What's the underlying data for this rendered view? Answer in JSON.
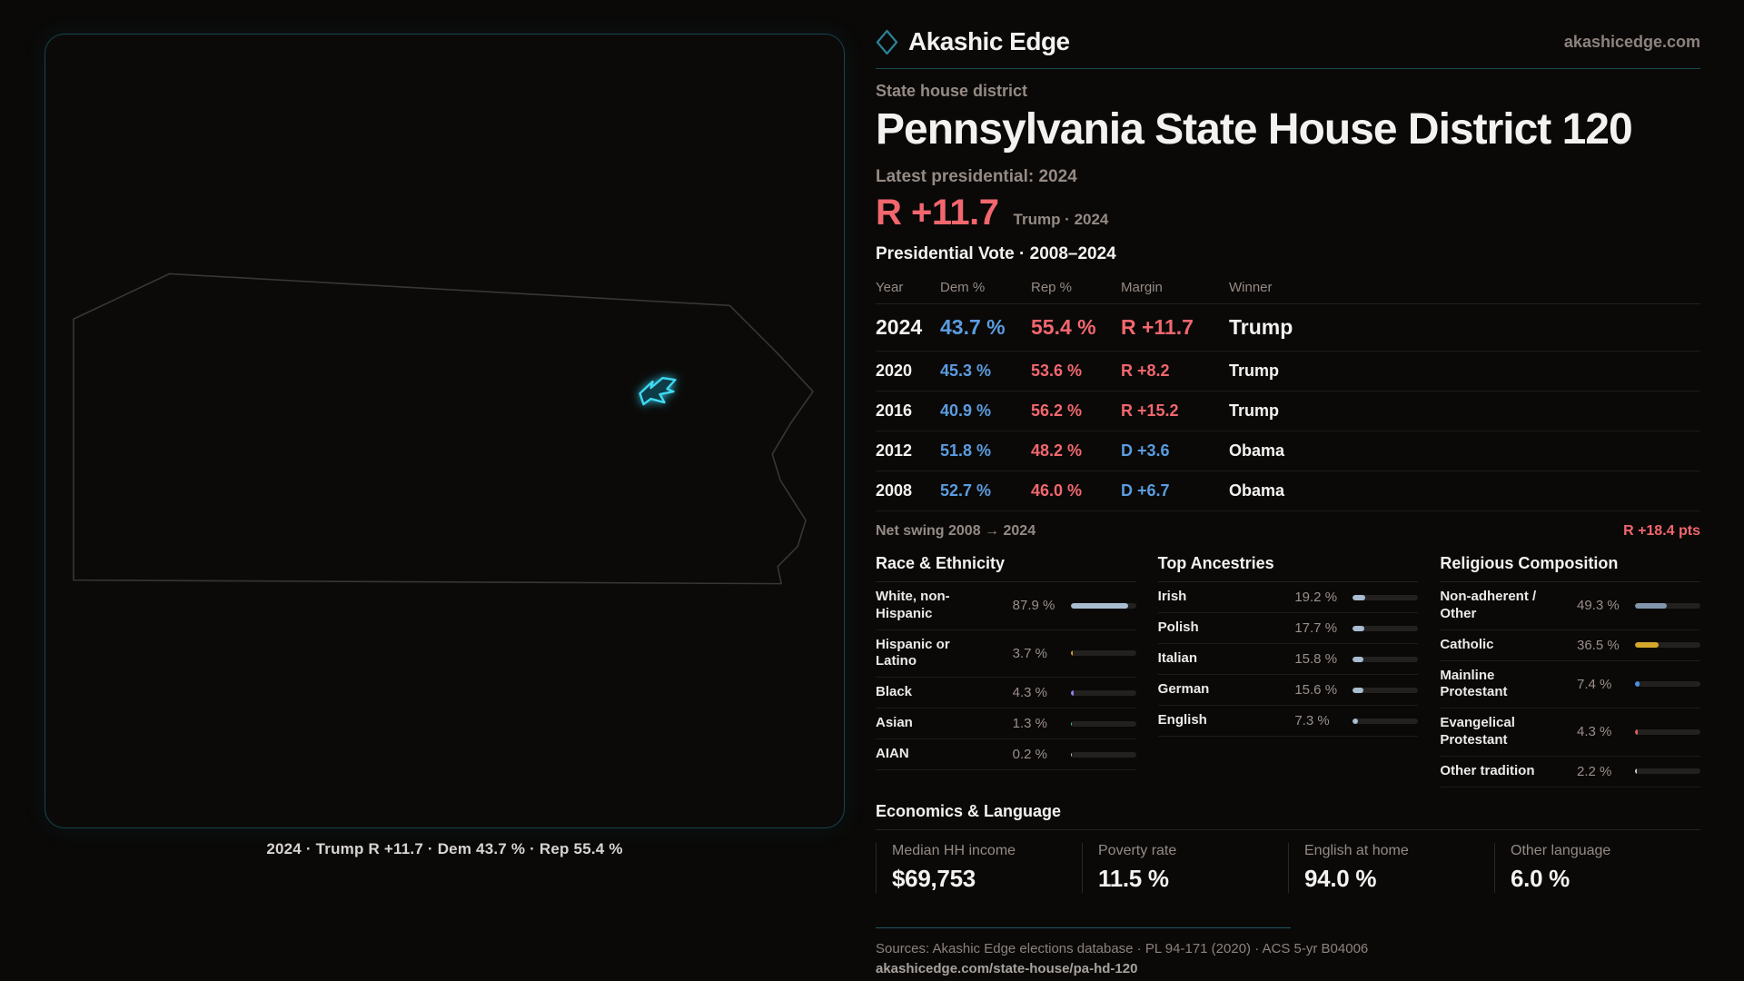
{
  "colors": {
    "background": "#0a0908",
    "panel_border_teal": "#17454f",
    "accent_cyan": "#41d9f2",
    "rep_red": "#f2676e",
    "dem_blue": "#5b9ce0",
    "text_primary": "#f4f2f0",
    "text_muted": "#958a84",
    "bar_steel": "#a9bdd1",
    "catholic_gold": "#d4a72c",
    "footer_teal": "#1e5965"
  },
  "brand": {
    "name": "Akashic Edge",
    "site": "akashicedge.com",
    "logo": "diamond-icon"
  },
  "header": {
    "kicker": "State house district",
    "title": "Pennsylvania State House District 120",
    "latest_label": "Latest presidential: 2024",
    "headline_margin": "R +11.7",
    "headline_note": "Trump · 2024"
  },
  "vote_table": {
    "title": "Presidential Vote · 2008–2024",
    "columns": [
      "Year",
      "Dem %",
      "Rep %",
      "Margin",
      "Winner"
    ],
    "rows": [
      {
        "year": "2024",
        "dem": "43.7 %",
        "rep": "55.4 %",
        "margin": "R +11.7",
        "margin_party": "R",
        "winner": "Trump",
        "emphasis": true
      },
      {
        "year": "2020",
        "dem": "45.3 %",
        "rep": "53.6 %",
        "margin": "R +8.2",
        "margin_party": "R",
        "winner": "Trump",
        "emphasis": false
      },
      {
        "year": "2016",
        "dem": "40.9 %",
        "rep": "56.2 %",
        "margin": "R +15.2",
        "margin_party": "R",
        "winner": "Trump",
        "emphasis": false
      },
      {
        "year": "2012",
        "dem": "51.8 %",
        "rep": "48.2 %",
        "margin": "D +3.6",
        "margin_party": "D",
        "winner": "Obama",
        "emphasis": false
      },
      {
        "year": "2008",
        "dem": "52.7 %",
        "rep": "46.0 %",
        "margin": "D +6.7",
        "margin_party": "D",
        "winner": "Obama",
        "emphasis": false
      }
    ]
  },
  "net_swing": {
    "label": "Net swing 2008 → 2024",
    "value": "R +18.4 pts"
  },
  "panels": [
    {
      "title": "Race & Ethnicity",
      "rows": [
        {
          "label": "White, non-Hispanic",
          "value": "87.9 %",
          "pct": 87.9,
          "color": "#a9bdd1"
        },
        {
          "label": "Hispanic or Latino",
          "value": "3.7 %",
          "pct": 3.7,
          "color": "#dd9a2f"
        },
        {
          "label": "Black",
          "value": "4.3 %",
          "pct": 4.3,
          "color": "#8f83ea"
        },
        {
          "label": "Asian",
          "value": "1.3 %",
          "pct": 1.3,
          "color": "#35c29b"
        },
        {
          "label": "AIAN",
          "value": "0.2 %",
          "pct": 0.2,
          "color": "#a9bdd1"
        }
      ]
    },
    {
      "title": "Top Ancestries",
      "rows": [
        {
          "label": "Irish",
          "value": "19.2 %",
          "pct": 19.2,
          "color": "#a9bdd1"
        },
        {
          "label": "Polish",
          "value": "17.7 %",
          "pct": 17.7,
          "color": "#a9bdd1"
        },
        {
          "label": "Italian",
          "value": "15.8 %",
          "pct": 15.8,
          "color": "#a9bdd1"
        },
        {
          "label": "German",
          "value": "15.6 %",
          "pct": 15.6,
          "color": "#a9bdd1"
        },
        {
          "label": "English",
          "value": "7.3 %",
          "pct": 7.3,
          "color": "#a9bdd1"
        }
      ]
    },
    {
      "title": "Religious Composition",
      "rows": [
        {
          "label": "Non-adherent / Other",
          "value": "49.3 %",
          "pct": 49.3,
          "color": "#8195ab"
        },
        {
          "label": "Catholic",
          "value": "36.5 %",
          "pct": 36.5,
          "color": "#d4a72c"
        },
        {
          "label": "Mainline Protestant",
          "value": "7.4 %",
          "pct": 7.4,
          "color": "#4a8fe2"
        },
        {
          "label": "Evangelical Protestant",
          "value": "4.3 %",
          "pct": 4.3,
          "color": "#e05b5b"
        },
        {
          "label": "Other tradition",
          "value": "2.2 %",
          "pct": 2.2,
          "color": "#cfccc8"
        }
      ]
    }
  ],
  "economics": {
    "title": "Economics & Language",
    "stats": [
      {
        "label": "Median HH income",
        "value": "$69,753"
      },
      {
        "label": "Poverty rate",
        "value": "11.5 %"
      },
      {
        "label": "English at home",
        "value": "94.0 %"
      },
      {
        "label": "Other language",
        "value": "6.0 %"
      }
    ]
  },
  "map": {
    "caption": "2024 · Trump R +11.7 · Dem 43.7 % · Rep 55.4 %",
    "region": "Pennsylvania",
    "highlight": "district-120"
  },
  "footer": {
    "sources": "Sources: Akashic Edge elections database · PL 94-171 (2020) · ACS 5-yr B04006",
    "permalink": "akashicedge.com/state-house/pa-hd-120"
  },
  "chart_data": [
    {
      "type": "table",
      "title": "Presidential Vote · 2008–2024",
      "columns": [
        "Year",
        "Dem %",
        "Rep %",
        "Margin",
        "Winner"
      ],
      "rows": [
        [
          "2024",
          43.7,
          55.4,
          "R +11.7",
          "Trump"
        ],
        [
          "2020",
          45.3,
          53.6,
          "R +8.2",
          "Trump"
        ],
        [
          "2016",
          40.9,
          56.2,
          "R +15.2",
          "Trump"
        ],
        [
          "2012",
          51.8,
          48.2,
          "D +3.6",
          "Obama"
        ],
        [
          "2008",
          52.7,
          46.0,
          "D +6.7",
          "Obama"
        ]
      ],
      "net_swing_2008_to_2024": "R +18.4 pts"
    },
    {
      "type": "bar",
      "title": "Race & Ethnicity",
      "orientation": "horizontal",
      "unit": "%",
      "xlim": [
        0,
        100
      ],
      "categories": [
        "White, non-Hispanic",
        "Hispanic or Latino",
        "Black",
        "Asian",
        "AIAN"
      ],
      "values": [
        87.9,
        3.7,
        4.3,
        1.3,
        0.2
      ]
    },
    {
      "type": "bar",
      "title": "Top Ancestries",
      "orientation": "horizontal",
      "unit": "%",
      "xlim": [
        0,
        100
      ],
      "categories": [
        "Irish",
        "Polish",
        "Italian",
        "German",
        "English"
      ],
      "values": [
        19.2,
        17.7,
        15.8,
        15.6,
        7.3
      ]
    },
    {
      "type": "bar",
      "title": "Religious Composition",
      "orientation": "horizontal",
      "unit": "%",
      "xlim": [
        0,
        100
      ],
      "categories": [
        "Non-adherent / Other",
        "Catholic",
        "Mainline Protestant",
        "Evangelical Protestant",
        "Other tradition"
      ],
      "values": [
        49.3,
        36.5,
        7.4,
        4.3,
        2.2
      ]
    },
    {
      "type": "table",
      "title": "Economics & Language",
      "columns": [
        "Median HH income",
        "Poverty rate",
        "English at home",
        "Other language"
      ],
      "rows": [
        [
          "$69,753",
          "11.5 %",
          "94.0 %",
          "6.0 %"
        ]
      ]
    }
  ]
}
